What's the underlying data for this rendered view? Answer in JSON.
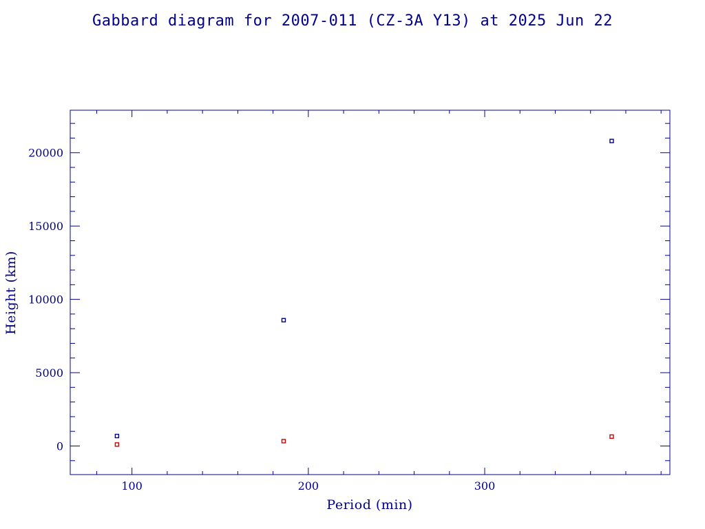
{
  "chart_data": {
    "type": "scatter",
    "title": "Gabbard diagram for 2007-011 (CZ-3A Y13) at 2025 Jun 22",
    "xlabel": "Period (min)",
    "ylabel": "Height (km)",
    "xlim": [
      65,
      405
    ],
    "ylim": [
      -1950,
      22900
    ],
    "x_ticks": [
      100,
      200,
      300
    ],
    "x_tick_labels": [
      "100",
      "200",
      "300"
    ],
    "x_minor_step": 20,
    "y_ticks": [
      0,
      5000,
      10000,
      15000,
      20000
    ],
    "y_tick_labels": [
      "0",
      "5000",
      "10000",
      "15000",
      "20000"
    ],
    "y_minor_step": 1000,
    "grid": false,
    "series": [
      {
        "color": "#00008b",
        "x": [
          91.5,
          186,
          372
        ],
        "y": [
          680,
          8580,
          20800
        ]
      },
      {
        "color": "#cc0000",
        "x": [
          91.5,
          186,
          372
        ],
        "y": [
          100,
          330,
          640
        ]
      }
    ]
  }
}
